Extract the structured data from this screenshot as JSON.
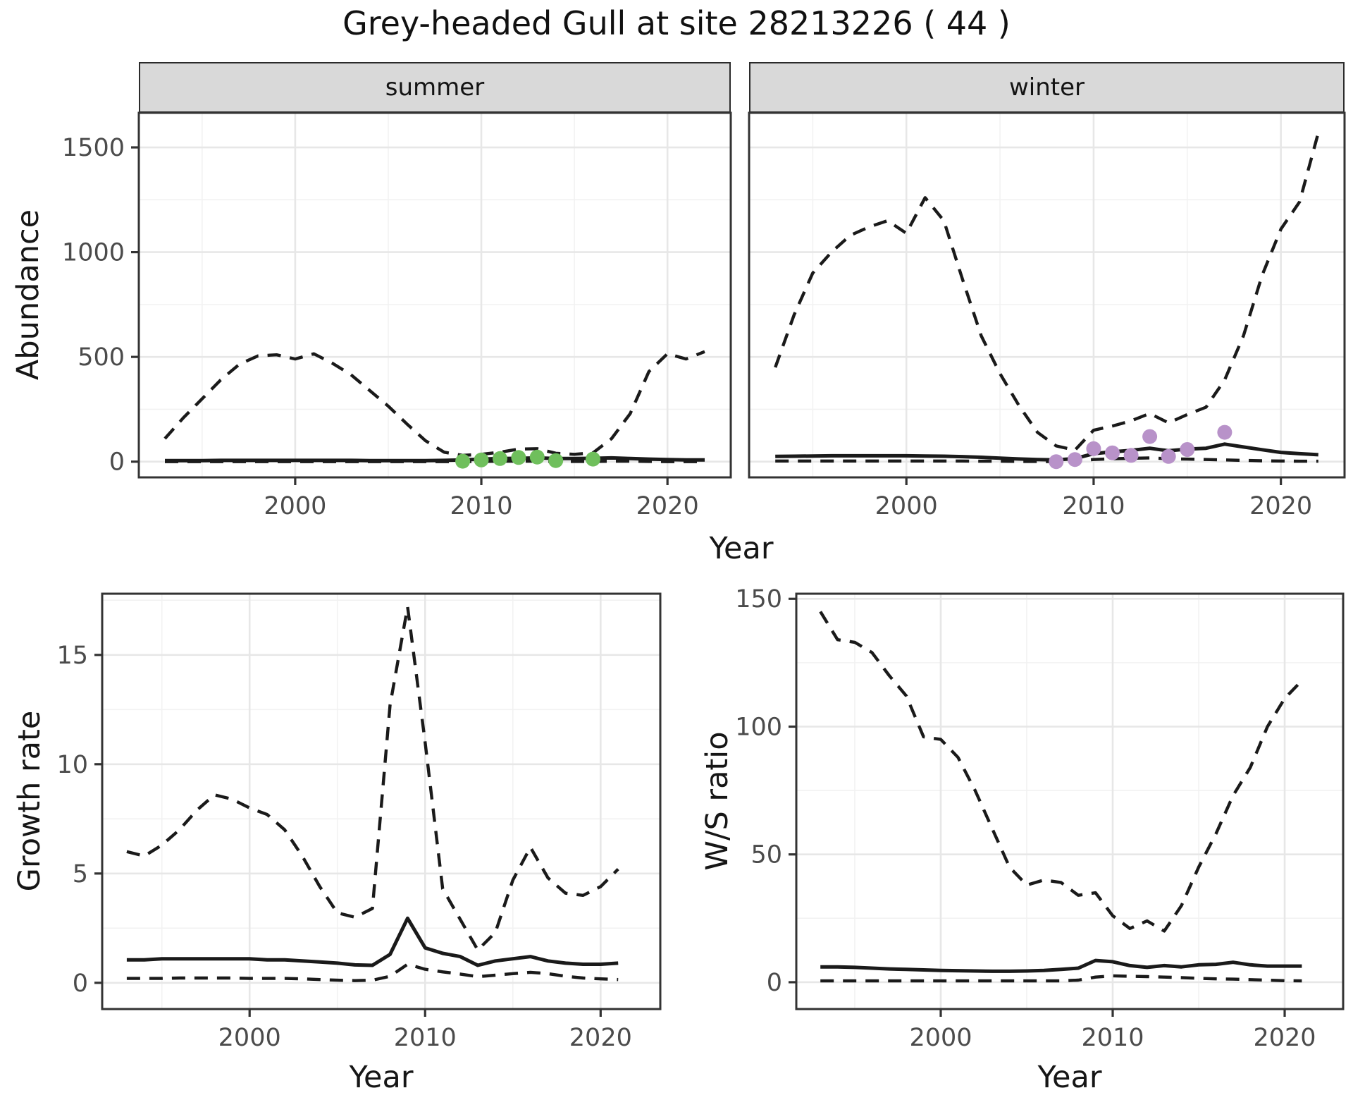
{
  "title": "Grey-headed Gull at site 28213226 ( 44 )",
  "colors": {
    "line": "#1a1a1a",
    "grid_major": "#e7e7e7",
    "grid_minor": "#f2f2f2",
    "axis_text": "#4b4b4b",
    "axis_tick": "#333333",
    "panel_border": "#333333",
    "panel_bg": "#ffffff",
    "strip_bg": "#d9d9d9",
    "summer_points": "#6fbf5c",
    "winter_points": "#b892c9"
  },
  "chart_data": [
    {
      "id": "abundance_summer",
      "type": "line",
      "facet": "summer",
      "xlabel": "Year",
      "ylabel": "Abundance",
      "xlim": [
        1991.6,
        2023.4
      ],
      "ylim": [
        -75,
        1665
      ],
      "xticks": [
        2000,
        2010,
        2020
      ],
      "yticks": [
        0,
        500,
        1000,
        1500
      ],
      "x_minor": [
        1995,
        2005,
        2015
      ],
      "y_minor": [
        250,
        750,
        1250
      ],
      "grid": true,
      "legend": "none",
      "years": [
        1993,
        1994,
        1995,
        1996,
        1997,
        1998,
        1999,
        2000,
        2001,
        2002,
        2003,
        2004,
        2005,
        2006,
        2007,
        2008,
        2009,
        2010,
        2011,
        2012,
        2013,
        2014,
        2015,
        2016,
        2017,
        2018,
        2019,
        2020,
        2021,
        2022
      ],
      "series": [
        {
          "name": "upper_95ci",
          "linetype": "dashed",
          "values": [
            110,
            210,
            300,
            390,
            465,
            505,
            510,
            490,
            515,
            470,
            415,
            340,
            265,
            180,
            100,
            45,
            30,
            35,
            45,
            60,
            62,
            40,
            35,
            42,
            110,
            230,
            430,
            515,
            490,
            525
          ]
        },
        {
          "name": "median",
          "linetype": "solid",
          "values": [
            5,
            5,
            5,
            6,
            6,
            6,
            6,
            6,
            6,
            6,
            6,
            5,
            5,
            5,
            5,
            6,
            8,
            12,
            15,
            16,
            18,
            15,
            15,
            16,
            18,
            15,
            12,
            10,
            8,
            8
          ]
        },
        {
          "name": "lower_95ci",
          "linetype": "dashed",
          "values": [
            0,
            0,
            0,
            0,
            0,
            0,
            0,
            0,
            0,
            0,
            0,
            0,
            0,
            0,
            0,
            0,
            0,
            1,
            2,
            2,
            2,
            1,
            1,
            1,
            2,
            2,
            1,
            0,
            0,
            0
          ]
        }
      ],
      "points": {
        "name": "observed_counts_summer",
        "color": "#6fbf5c",
        "x": [
          2009,
          2010,
          2011,
          2012,
          2013,
          2014,
          2016
        ],
        "y": [
          2,
          8,
          15,
          20,
          22,
          5,
          12
        ]
      }
    },
    {
      "id": "abundance_winter",
      "type": "line",
      "facet": "winter",
      "xlabel": "Year",
      "ylabel": "Abundance",
      "xlim": [
        1991.6,
        2023.4
      ],
      "ylim": [
        -75,
        1665
      ],
      "xticks": [
        2000,
        2010,
        2020
      ],
      "yticks": [
        0,
        500,
        1000,
        1500
      ],
      "x_minor": [
        1995,
        2005,
        2015
      ],
      "y_minor": [
        250,
        750,
        1250
      ],
      "grid": true,
      "legend": "none",
      "years": [
        1993,
        1994,
        1995,
        1996,
        1997,
        1998,
        1999,
        2000,
        2001,
        2002,
        2003,
        2004,
        2005,
        2006,
        2007,
        2008,
        2009,
        2010,
        2011,
        2012,
        2013,
        2014,
        2015,
        2016,
        2017,
        2018,
        2019,
        2020,
        2021,
        2022
      ],
      "series": [
        {
          "name": "upper_95ci",
          "linetype": "dashed",
          "values": [
            450,
            700,
            900,
            1000,
            1080,
            1120,
            1150,
            1090,
            1260,
            1150,
            870,
            600,
            420,
            270,
            140,
            75,
            55,
            150,
            170,
            195,
            230,
            185,
            225,
            260,
            390,
            600,
            890,
            1110,
            1240,
            1570
          ]
        },
        {
          "name": "median",
          "linetype": "solid",
          "values": [
            25,
            26,
            27,
            28,
            28,
            28,
            28,
            28,
            27,
            26,
            24,
            21,
            17,
            13,
            10,
            8,
            15,
            38,
            47,
            54,
            64,
            52,
            60,
            64,
            84,
            70,
            57,
            44,
            38,
            33
          ]
        },
        {
          "name": "lower_95ci",
          "linetype": "dashed",
          "values": [
            3,
            3,
            3,
            3,
            3,
            3,
            3,
            3,
            3,
            3,
            3,
            2,
            2,
            1,
            1,
            0,
            2,
            10,
            14,
            16,
            18,
            14,
            12,
            10,
            8,
            6,
            4,
            3,
            2,
            2
          ]
        }
      ],
      "points": {
        "name": "observed_counts_winter",
        "color": "#b892c9",
        "x": [
          2008,
          2009,
          2010,
          2011,
          2012,
          2013,
          2014,
          2015,
          2017
        ],
        "y": [
          0,
          10,
          62,
          42,
          30,
          120,
          25,
          58,
          140
        ]
      }
    },
    {
      "id": "growth_rate",
      "type": "line",
      "facet": "",
      "xlabel": "Year",
      "ylabel": "Growth rate",
      "xlim": [
        1991.6,
        2023.4
      ],
      "ylim": [
        -1.2,
        17.8
      ],
      "xticks": [
        2000,
        2010,
        2020
      ],
      "yticks": [
        0,
        5,
        10,
        15
      ],
      "x_minor": [
        1995,
        2005,
        2015
      ],
      "y_minor": [
        2.5,
        7.5,
        12.5,
        17.5
      ],
      "grid": true,
      "legend": "none",
      "years": [
        1993,
        1994,
        1995,
        1996,
        1997,
        1998,
        1999,
        2000,
        2001,
        2002,
        2003,
        2004,
        2005,
        2006,
        2007,
        2008,
        2009,
        2010,
        2011,
        2012,
        2013,
        2014,
        2015,
        2016,
        2017,
        2018,
        2019,
        2020,
        2021
      ],
      "series": [
        {
          "name": "upper_95ci",
          "linetype": "dashed",
          "values": [
            6.0,
            5.8,
            6.3,
            7.0,
            7.9,
            8.6,
            8.4,
            8.0,
            7.7,
            7.0,
            5.8,
            4.4,
            3.2,
            3.0,
            3.4,
            12.7,
            17.2,
            11.0,
            4.3,
            2.9,
            1.5,
            2.3,
            4.7,
            6.2,
            4.8,
            4.1,
            4.0,
            4.4,
            5.2
          ]
        },
        {
          "name": "median",
          "linetype": "solid",
          "values": [
            1.05,
            1.05,
            1.1,
            1.1,
            1.1,
            1.1,
            1.1,
            1.1,
            1.05,
            1.05,
            1.0,
            0.95,
            0.9,
            0.82,
            0.8,
            1.3,
            2.95,
            1.6,
            1.35,
            1.2,
            0.8,
            1.0,
            1.1,
            1.2,
            1.0,
            0.9,
            0.85,
            0.85,
            0.9
          ]
        },
        {
          "name": "lower_95ci",
          "linetype": "dashed",
          "values": [
            0.2,
            0.2,
            0.2,
            0.22,
            0.22,
            0.22,
            0.22,
            0.2,
            0.2,
            0.2,
            0.18,
            0.15,
            0.12,
            0.1,
            0.12,
            0.3,
            0.85,
            0.62,
            0.5,
            0.4,
            0.28,
            0.35,
            0.42,
            0.48,
            0.42,
            0.3,
            0.22,
            0.18,
            0.15
          ]
        }
      ]
    },
    {
      "id": "ws_ratio",
      "type": "line",
      "facet": "",
      "xlabel": "Year",
      "ylabel": "W/S ratio",
      "xlim": [
        1991.6,
        2023.4
      ],
      "ylim": [
        -10.5,
        152
      ],
      "xticks": [
        2000,
        2010,
        2020
      ],
      "yticks": [
        0,
        50,
        100,
        150
      ],
      "x_minor": [
        1995,
        2005,
        2015
      ],
      "y_minor": [
        25,
        75,
        125
      ],
      "grid": true,
      "legend": "none",
      "years": [
        1993,
        1994,
        1995,
        1996,
        1997,
        1998,
        1999,
        2000,
        2001,
        2002,
        2003,
        2004,
        2005,
        2006,
        2007,
        2008,
        2009,
        2010,
        2011,
        2012,
        2013,
        2014,
        2015,
        2016,
        2017,
        2018,
        2019,
        2020,
        2021
      ],
      "series": [
        {
          "name": "upper_95ci",
          "linetype": "dashed",
          "values": [
            145,
            134,
            133,
            129,
            120,
            112,
            96,
            95,
            88,
            75,
            60,
            45,
            38,
            40,
            39,
            34,
            35,
            26,
            21,
            24,
            20,
            30,
            45,
            58,
            73,
            84,
            100,
            111,
            118
          ]
        },
        {
          "name": "median",
          "linetype": "solid",
          "values": [
            6,
            6,
            5.8,
            5.5,
            5.2,
            5,
            4.8,
            4.6,
            4.5,
            4.4,
            4.3,
            4.3,
            4.4,
            4.6,
            5,
            5.5,
            8.5,
            8,
            6.5,
            5.8,
            6.5,
            6,
            6.8,
            7,
            7.8,
            6.8,
            6.3,
            6.3,
            6.3
          ]
        },
        {
          "name": "lower_95ci",
          "linetype": "dashed",
          "values": [
            0.5,
            0.5,
            0.5,
            0.5,
            0.5,
            0.5,
            0.5,
            0.5,
            0.5,
            0.5,
            0.5,
            0.5,
            0.5,
            0.5,
            0.5,
            0.8,
            2.0,
            2.5,
            2.3,
            2.2,
            2.0,
            1.8,
            1.5,
            1.3,
            1.2,
            1.0,
            0.8,
            0.6,
            0.5
          ]
        }
      ]
    }
  ]
}
